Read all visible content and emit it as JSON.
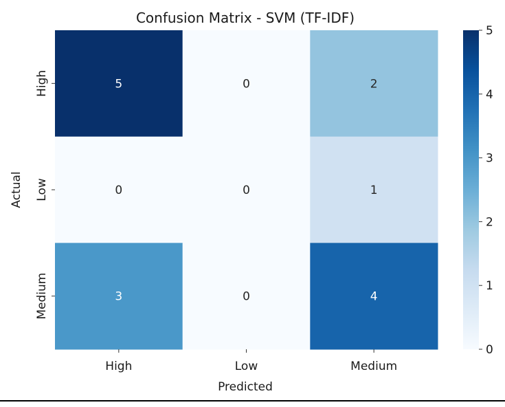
{
  "chart_data": {
    "type": "heatmap",
    "title": "Confusion Matrix - SVM (TF-IDF)",
    "xlabel": "Predicted",
    "ylabel": "Actual",
    "x_categories": [
      "High",
      "Low",
      "Medium"
    ],
    "y_categories": [
      "High",
      "Low",
      "Medium"
    ],
    "values": [
      [
        5,
        0,
        2
      ],
      [
        0,
        0,
        1
      ],
      [
        3,
        0,
        4
      ]
    ],
    "colormap": "Blues",
    "colorbar": {
      "range": [
        0,
        5
      ],
      "ticks": [
        0,
        1,
        2,
        3,
        4,
        5
      ]
    },
    "annotated": true
  }
}
